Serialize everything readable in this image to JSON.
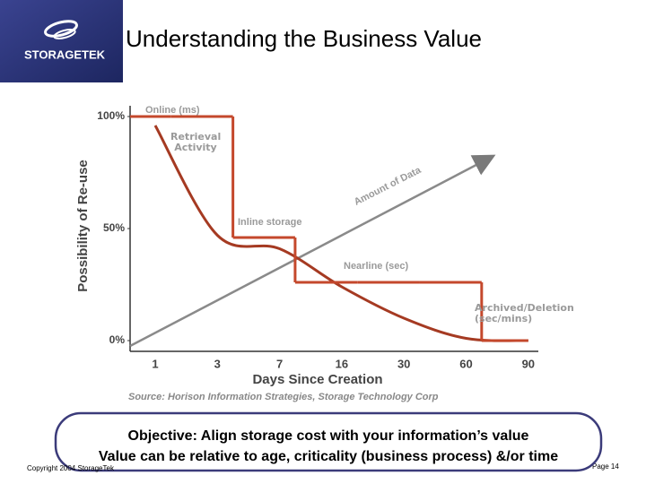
{
  "header": {
    "logo": "STORAGETEK",
    "title": "Understanding the Business Value"
  },
  "chart_data": {
    "type": "line",
    "y_label": "Possibility of Re-use",
    "x_label": "Days Since Creation",
    "source": "Source: Horison Information Strategies, Storage Technology Corp",
    "categories": [
      "1",
      "3",
      "7",
      "16",
      "30",
      "60",
      "90"
    ],
    "ylim": [
      0,
      100
    ],
    "yticks": [
      {
        "value": 0,
        "label": "0%"
      },
      {
        "value": 50,
        "label": "50%"
      },
      {
        "value": 100,
        "label": "100%"
      }
    ],
    "series": [
      {
        "name": "Retrieval Activity",
        "color": "#a53a22",
        "values": [
          96,
          47,
          41,
          24,
          10,
          1,
          0
        ]
      },
      {
        "color": "#c4482c",
        "step": true,
        "values": [
          100,
          100,
          46,
          26,
          26,
          26,
          0
        ]
      }
    ],
    "annotations": [
      "Online (ms)",
      "Inline storage",
      "Nearline (sec)",
      "Archived/Deletion (sec/mins)",
      "Amount of Data"
    ]
  },
  "footer": {
    "objective": [
      "Objective: Align storage cost with your information’s value",
      "Value can be relative to age, criticality (business process) &/or time"
    ],
    "copyright": "Copyright 2004 StorageTek",
    "page": "Page 14"
  }
}
